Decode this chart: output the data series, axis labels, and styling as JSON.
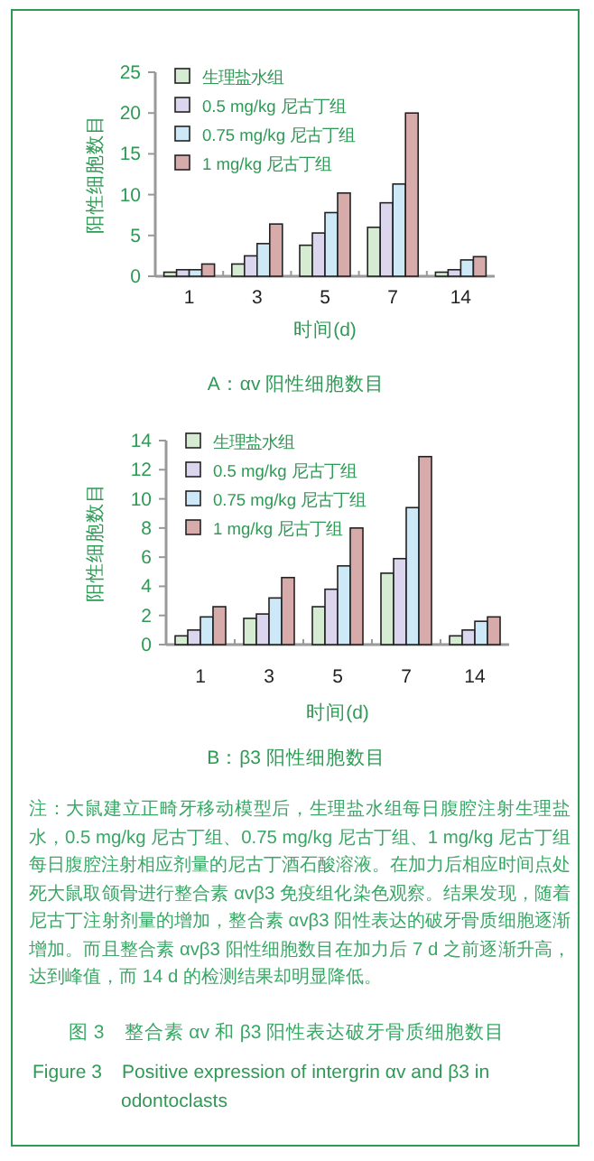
{
  "chart_data": [
    {
      "type": "bar",
      "title": "A：αv 阳性细胞数目",
      "xlabel": "时间(d)",
      "ylabel": "阳性细胞数目",
      "categories": [
        "1",
        "3",
        "5",
        "7",
        "14"
      ],
      "ylim": [
        0,
        25
      ],
      "yticks": [
        0,
        5,
        10,
        15,
        20,
        25
      ],
      "legend": "top left",
      "grid": false,
      "series": [
        {
          "name": "生理盐水组",
          "color": "#d6ecd2",
          "values": [
            0.5,
            1.5,
            3.8,
            6,
            0.5
          ]
        },
        {
          "name": "0.5 mg/kg 尼古丁组",
          "color": "#dcd5ee",
          "values": [
            0.8,
            2.5,
            5.3,
            9,
            0.8
          ]
        },
        {
          "name": "0.75 mg/kg 尼古丁组",
          "color": "#cde9f8",
          "values": [
            0.8,
            4,
            7.8,
            11.3,
            2
          ]
        },
        {
          "name": "1 mg/kg 尼古丁组",
          "color": "#d8abab",
          "values": [
            1.5,
            6.4,
            10.2,
            20,
            2.4
          ]
        }
      ]
    },
    {
      "type": "bar",
      "title": "B：β3 阳性细胞数目",
      "xlabel": "时间(d)",
      "ylabel": "阳性细胞数目",
      "categories": [
        "1",
        "3",
        "5",
        "7",
        "14"
      ],
      "ylim": [
        0,
        14
      ],
      "yticks": [
        0,
        2,
        4,
        6,
        8,
        10,
        12,
        14
      ],
      "legend": "top left",
      "grid": false,
      "series": [
        {
          "name": "生理盐水组",
          "color": "#d6ecd2",
          "values": [
            0.6,
            1.8,
            2.6,
            4.9,
            0.6
          ]
        },
        {
          "name": "0.5 mg/kg 尼古丁组",
          "color": "#dcd5ee",
          "values": [
            1,
            2.1,
            3.8,
            5.9,
            1
          ]
        },
        {
          "name": "0.75 mg/kg 尼古丁组",
          "color": "#cde9f8",
          "values": [
            1.9,
            3.2,
            5.4,
            9.4,
            1.6
          ]
        },
        {
          "name": "1 mg/kg 尼古丁组",
          "color": "#d8abab",
          "values": [
            2.6,
            4.6,
            8,
            12.9,
            1.9
          ]
        }
      ],
      "annotations": [
        "注：大鼠建立正畸牙移动模型后，生理盐水组每日腹腔注射生理盐水，0.5 mg/kg 尼古丁组、0.75 mg/kg 尼古丁组、1 mg/kg 尼古丁组每日腹腔注射相应剂量的尼古丁酒石酸溶液。在加力后相应时间点处死大鼠取颌骨进行整合素 αvβ3 免疫组化染色观察。结果发现，随着尼古丁注射剂量的增加，整合素 αvβ3 阳性表达的破牙骨质细胞逐渐增加。而且整合素 αvβ3 阳性细胞数目在加力后 7 d 之前逐渐升高，达到峰值，而 14 d 的检测结果却明显降低。",
        "图 3　整合素 αv 和 β3 阳性表达破牙骨质细胞数目",
        "Figure 3　Positive expression of intergrin αv and β3 in odontoclasts"
      ]
    }
  ]
}
